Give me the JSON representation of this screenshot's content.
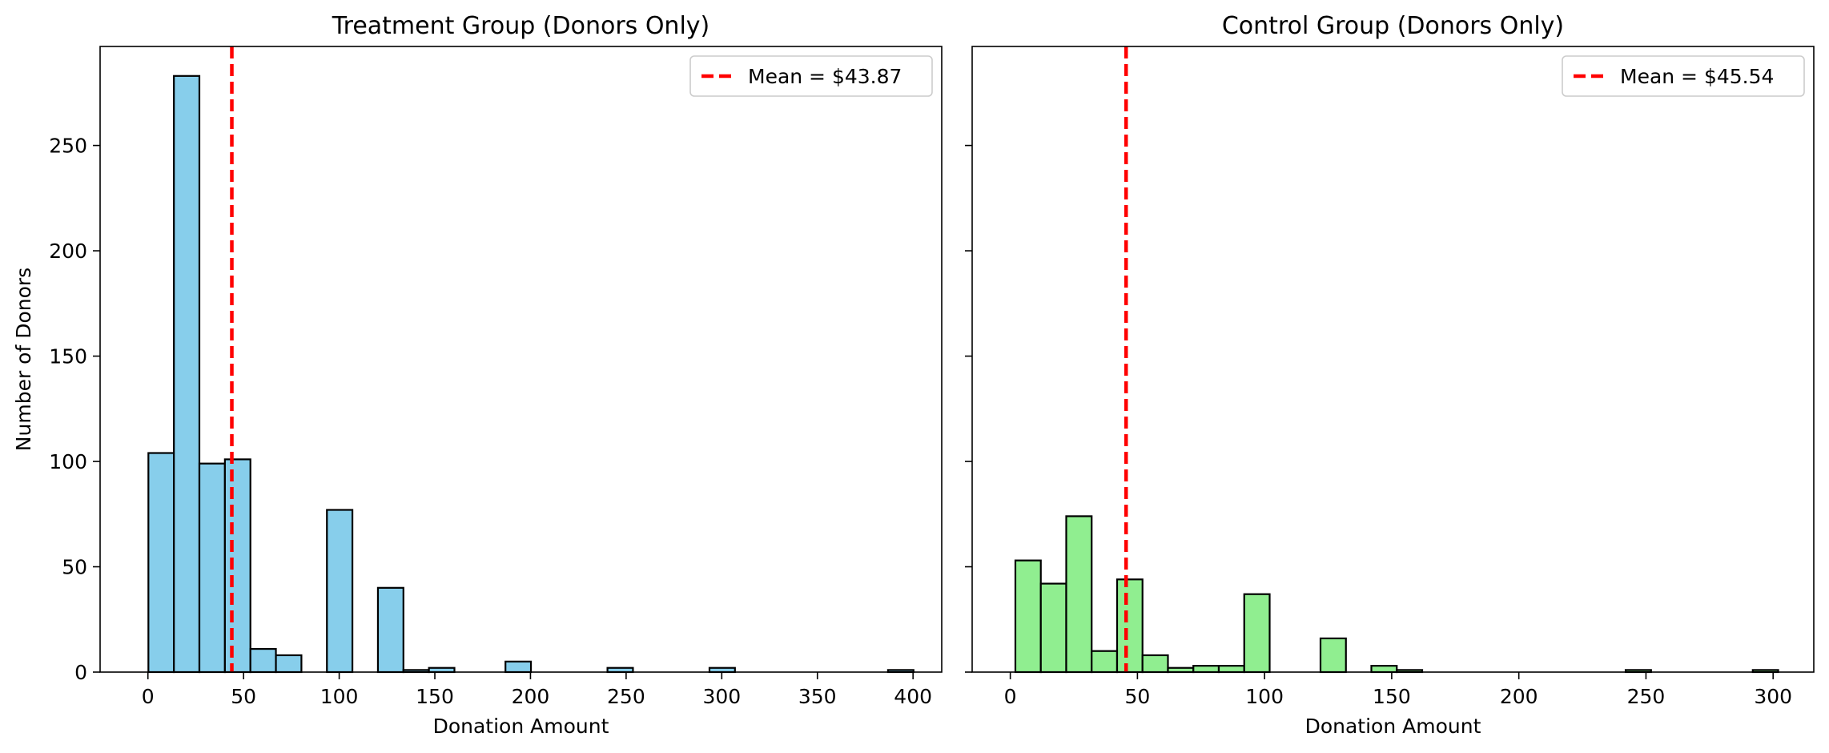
{
  "chart_data": [
    {
      "type": "bar",
      "title": "Treatment Group (Donors Only)",
      "xlabel": "Donation Amount",
      "ylabel": "Number of Donors",
      "xlim": [
        -25,
        415
      ],
      "ylim": [
        0,
        297
      ],
      "xticks": [
        0,
        50,
        100,
        150,
        200,
        250,
        300,
        350,
        400
      ],
      "yticks": [
        0,
        50,
        100,
        150,
        200,
        250
      ],
      "bin_width": 13.33,
      "bins": [
        {
          "x0": 0.25,
          "count": 104
        },
        {
          "x0": 13.58,
          "count": 283
        },
        {
          "x0": 26.92,
          "count": 99
        },
        {
          "x0": 40.25,
          "count": 101
        },
        {
          "x0": 53.58,
          "count": 11
        },
        {
          "x0": 66.92,
          "count": 8
        },
        {
          "x0": 93.58,
          "count": 77
        },
        {
          "x0": 120.25,
          "count": 40
        },
        {
          "x0": 133.58,
          "count": 1
        },
        {
          "x0": 146.92,
          "count": 2
        },
        {
          "x0": 186.92,
          "count": 5
        },
        {
          "x0": 240.25,
          "count": 2
        },
        {
          "x0": 293.58,
          "count": 2
        },
        {
          "x0": 386.92,
          "count": 1
        }
      ],
      "bar_color": "#87ceeb",
      "mean": 43.87,
      "mean_color": "#ff0000",
      "legend": {
        "label": "Mean = $43.87",
        "loc": "upper right"
      },
      "show_ylabel": true,
      "show_ytick_labels": true
    },
    {
      "type": "bar",
      "title": "Control Group (Donors Only)",
      "xlabel": "Donation Amount",
      "ylabel": "",
      "xlim": [
        -15,
        316
      ],
      "ylim": [
        0,
        297
      ],
      "xticks": [
        0,
        50,
        100,
        150,
        200,
        250,
        300
      ],
      "yticks": [
        0,
        50,
        100,
        150,
        200,
        250
      ],
      "bin_width": 10,
      "bins": [
        {
          "x0": 2,
          "count": 53
        },
        {
          "x0": 12,
          "count": 42
        },
        {
          "x0": 22,
          "count": 74
        },
        {
          "x0": 32,
          "count": 10
        },
        {
          "x0": 42,
          "count": 44
        },
        {
          "x0": 52,
          "count": 8
        },
        {
          "x0": 62,
          "count": 2
        },
        {
          "x0": 72,
          "count": 3
        },
        {
          "x0": 82,
          "count": 3
        },
        {
          "x0": 92,
          "count": 37
        },
        {
          "x0": 122,
          "count": 16
        },
        {
          "x0": 142,
          "count": 3
        },
        {
          "x0": 152,
          "count": 1
        },
        {
          "x0": 242,
          "count": 1
        },
        {
          "x0": 292,
          "count": 1
        }
      ],
      "bar_color": "#90ee90",
      "mean": 45.54,
      "mean_color": "#ff0000",
      "legend": {
        "label": "Mean = $45.54",
        "loc": "upper right"
      },
      "show_ylabel": false,
      "show_ytick_labels": false
    }
  ]
}
